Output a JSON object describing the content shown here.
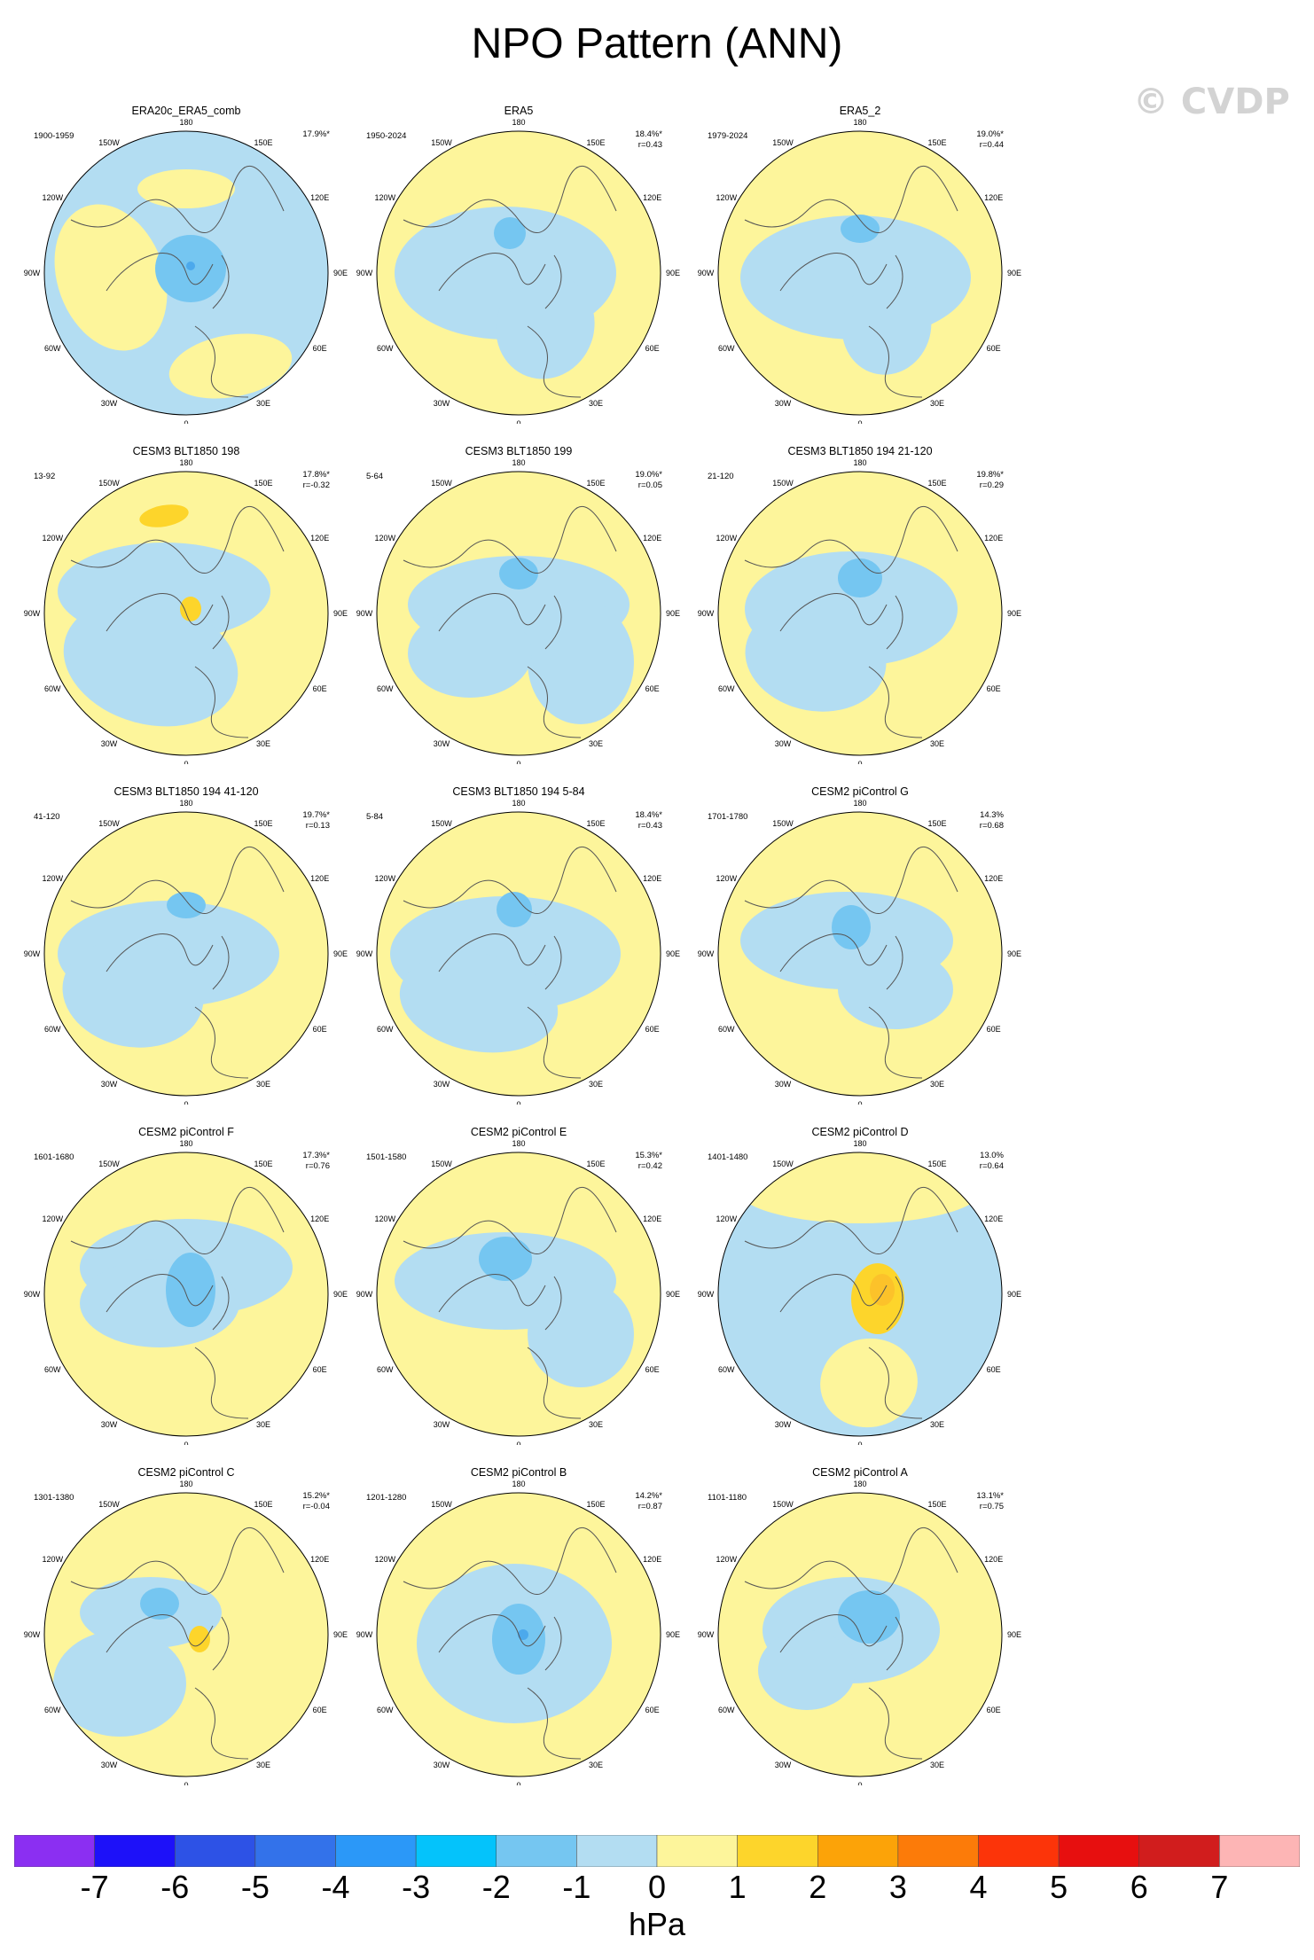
{
  "title": "NPO Pattern (ANN)",
  "watermark": "© CVDP",
  "lon_labels": [
    "180",
    "150E",
    "120E",
    "90E",
    "60E",
    "30E",
    "0",
    "30W",
    "60W",
    "90W",
    "120W",
    "150W"
  ],
  "panels": [
    {
      "title": "ERA20c_ERA5_comb",
      "period": "1900-1959",
      "pct": "17.9%*",
      "r": ""
    },
    {
      "title": "ERA5",
      "period": "1950-2024",
      "pct": "18.4%*",
      "r": "r=0.43"
    },
    {
      "title": "ERA5_2",
      "period": "1979-2024",
      "pct": "19.0%*",
      "r": "r=0.44"
    },
    {
      "title": "CESM3 BLT1850 198",
      "period": "13-92",
      "pct": "17.8%*",
      "r": "r=-0.32"
    },
    {
      "title": "CESM3 BLT1850 199",
      "period": "5-64",
      "pct": "19.0%*",
      "r": "r=0.05"
    },
    {
      "title": "CESM3 BLT1850 194 21-120",
      "period": "21-120",
      "pct": "19.8%*",
      "r": "r=0.29"
    },
    {
      "title": "CESM3 BLT1850 194 41-120",
      "period": "41-120",
      "pct": "19.7%*",
      "r": "r=0.13"
    },
    {
      "title": "CESM3 BLT1850 194 5-84",
      "period": "5-84",
      "pct": "18.4%*",
      "r": "r=0.43"
    },
    {
      "title": "CESM2 piControl G",
      "period": "1701-1780",
      "pct": "14.3%",
      "r": "r=0.68"
    },
    {
      "title": "CESM2 piControl F",
      "period": "1601-1680",
      "pct": "17.3%*",
      "r": "r=0.76"
    },
    {
      "title": "CESM2 piControl E",
      "period": "1501-1580",
      "pct": "15.3%*",
      "r": "r=0.42"
    },
    {
      "title": "CESM2 piControl D",
      "period": "1401-1480",
      "pct": "13.0%",
      "r": "r=0.64"
    },
    {
      "title": "CESM2 piControl C",
      "period": "1301-1380",
      "pct": "15.2%*",
      "r": "r=-0.04"
    },
    {
      "title": "CESM2 piControl B",
      "period": "1201-1280",
      "pct": "14.2%*",
      "r": "r=0.87"
    },
    {
      "title": "CESM2 piControl A",
      "period": "1101-1180",
      "pct": "13.1%*",
      "r": "r=0.75"
    }
  ],
  "colorbar": {
    "units": "hPa",
    "labels": [
      "-7",
      "-6",
      "-5",
      "-4",
      "-3",
      "-2",
      "-1",
      "0",
      "1",
      "2",
      "3",
      "4",
      "5",
      "6",
      "7"
    ],
    "colors": [
      "#8b2ff2",
      "#1d11f9",
      "#2d52e6",
      "#3372ea",
      "#2b98f8",
      "#04c3fb",
      "#75c6f1",
      "#b3ddf2",
      "#fdf59b",
      "#fdd52b",
      "#fca308",
      "#fc7b09",
      "#fc3409",
      "#e70f0f",
      "#d11d1d",
      "#fdb5b5"
    ]
  }
}
